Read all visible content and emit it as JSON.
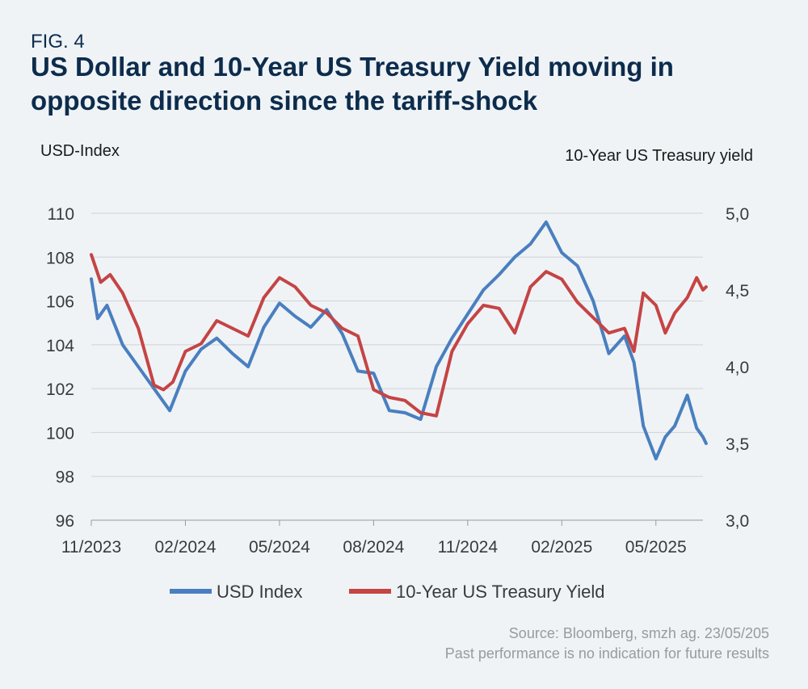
{
  "figure": {
    "label": "FIG. 4",
    "title": "US Dollar and 10-Year US Treasury Yield moving in opposite direction since the tariff-shock"
  },
  "chart_data": {
    "type": "line",
    "left_axis": {
      "title": "USD-Index",
      "ylim": [
        96,
        110
      ],
      "ticks": [
        96,
        98,
        100,
        102,
        104,
        106,
        108,
        110
      ],
      "tick_labels": [
        "96",
        "98",
        "100",
        "102",
        "104",
        "106",
        "108",
        "110"
      ]
    },
    "right_axis": {
      "title": "10-Year US Treasury yield",
      "ylim": [
        3.0,
        5.0
      ],
      "ticks": [
        3.0,
        3.5,
        4.0,
        4.5,
        5.0
      ],
      "tick_labels": [
        "3,0",
        "3,5",
        "4,0",
        "4,5",
        "5,0"
      ]
    },
    "x_axis": {
      "xlim": [
        0,
        19.5
      ],
      "ticks": [
        0,
        3,
        6,
        9,
        12,
        15,
        18
      ],
      "tick_labels": [
        "11/2023",
        "02/2024",
        "05/2024",
        "08/2024",
        "11/2024",
        "02/2025",
        "05/2025"
      ]
    },
    "grid": "horizontal",
    "x_unit": "months since Nov 2023",
    "series": [
      {
        "name": "USD Index",
        "axis": "left",
        "color": "#4a7fbf",
        "x": [
          0,
          0.2,
          0.5,
          1.0,
          1.5,
          2.0,
          2.5,
          3.0,
          3.5,
          4.0,
          4.5,
          5.0,
          5.5,
          6.0,
          6.5,
          7.0,
          7.5,
          8.0,
          8.5,
          9.0,
          9.5,
          10.0,
          10.5,
          11.0,
          11.5,
          12.0,
          12.5,
          13.0,
          13.5,
          14.0,
          14.5,
          15.0,
          15.5,
          16.0,
          16.5,
          17.0,
          17.3,
          17.6,
          18.0,
          18.3,
          18.6,
          19.0,
          19.3,
          19.5,
          19.6
        ],
        "values": [
          107.0,
          105.2,
          105.8,
          104.0,
          103.0,
          102.0,
          101.0,
          102.8,
          103.8,
          104.3,
          103.6,
          103.0,
          104.8,
          105.9,
          105.3,
          104.8,
          105.6,
          104.5,
          102.8,
          102.7,
          101.0,
          100.9,
          100.6,
          103.0,
          104.3,
          105.4,
          106.5,
          107.2,
          108.0,
          108.6,
          109.6,
          108.2,
          107.6,
          106.0,
          103.6,
          104.4,
          103.2,
          100.3,
          98.8,
          99.8,
          100.3,
          101.7,
          100.2,
          99.8,
          99.5
        ]
      },
      {
        "name": "10-Year US Treasury Yield",
        "axis": "right",
        "color": "#c54444",
        "x": [
          0,
          0.3,
          0.6,
          1.0,
          1.5,
          2.0,
          2.3,
          2.6,
          3.0,
          3.5,
          4.0,
          4.5,
          5.0,
          5.5,
          6.0,
          6.5,
          7.0,
          7.5,
          8.0,
          8.5,
          9.0,
          9.5,
          10.0,
          10.5,
          11.0,
          11.5,
          12.0,
          12.5,
          13.0,
          13.5,
          14.0,
          14.5,
          15.0,
          15.5,
          16.0,
          16.5,
          17.0,
          17.3,
          17.6,
          18.0,
          18.3,
          18.6,
          19.0,
          19.3,
          19.5,
          19.6
        ],
        "values": [
          4.73,
          4.55,
          4.6,
          4.48,
          4.25,
          3.88,
          3.85,
          3.9,
          4.1,
          4.15,
          4.3,
          4.25,
          4.2,
          4.45,
          4.58,
          4.52,
          4.4,
          4.35,
          4.25,
          4.2,
          3.85,
          3.8,
          3.78,
          3.7,
          3.68,
          4.1,
          4.28,
          4.4,
          4.38,
          4.22,
          4.52,
          4.62,
          4.57,
          4.42,
          4.32,
          4.22,
          4.25,
          4.1,
          4.48,
          4.4,
          4.22,
          4.35,
          4.45,
          4.58,
          4.5,
          4.52
        ]
      }
    ]
  },
  "legend": [
    {
      "label": "USD Index",
      "color": "#4a7fbf"
    },
    {
      "label": "10-Year US Treasury Yield",
      "color": "#c54444"
    }
  ],
  "source": {
    "line1": "Source: Bloomberg, smzh ag. 23/05/205",
    "line2": "Past performance is no indication for future results"
  }
}
